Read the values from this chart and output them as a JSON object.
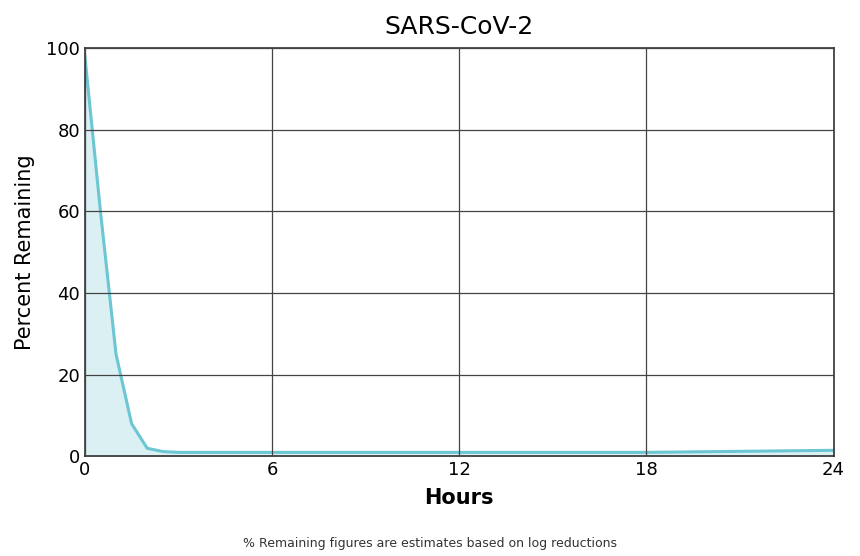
{
  "title": "SARS-CoV-2",
  "xlabel": "Hours",
  "ylabel": "Percent Remaining",
  "subtitle": "% Remaining figures are estimates based on log reductions",
  "x_data": [
    0,
    0.5,
    1.0,
    1.5,
    2.0,
    2.5,
    3.0,
    6.0,
    12.0,
    18.0,
    24.0
  ],
  "y_data": [
    98,
    60,
    25,
    8,
    2,
    1.2,
    1.0,
    1.0,
    1.0,
    1.0,
    1.5
  ],
  "line_color": "#6DC6D3",
  "fill_color": "#6DC6D3",
  "fill_alpha": 0.25,
  "line_width": 2.2,
  "xlim": [
    0,
    24
  ],
  "ylim": [
    0,
    100
  ],
  "xticks": [
    0,
    6,
    12,
    18,
    24
  ],
  "yticks": [
    0,
    20,
    40,
    60,
    80,
    100
  ],
  "grid_color": "#444444",
  "grid_linewidth": 0.9,
  "background_color": "#ffffff",
  "title_fontsize": 18,
  "axis_label_fontsize": 15,
  "tick_fontsize": 13,
  "subtitle_fontsize": 9,
  "spine_color": "#333333",
  "spine_linewidth": 1.2
}
